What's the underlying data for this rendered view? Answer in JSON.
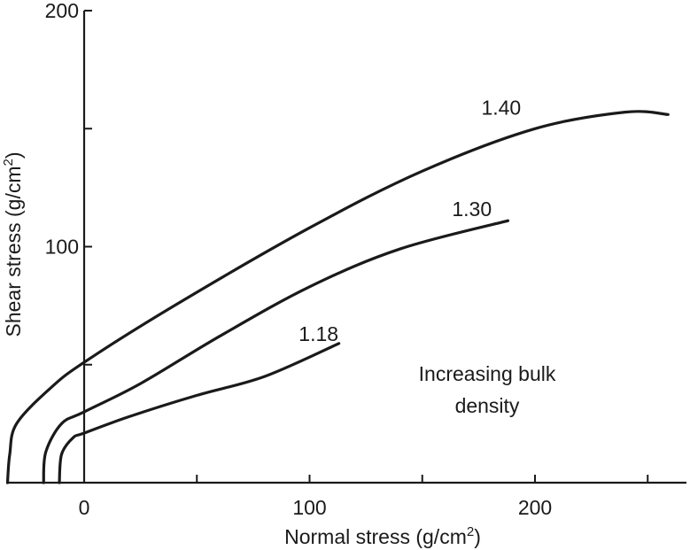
{
  "chart_data": {
    "type": "line",
    "title": "",
    "xlabel": "Normal stress (g/cm",
    "xlabel_sup": "2",
    "xlabel_suffix": ")",
    "ylabel": "Shear stress (g/cm",
    "ylabel_sup": "2",
    "ylabel_suffix": ")",
    "xlim": [
      -35,
      275
    ],
    "ylim": [
      0,
      200
    ],
    "x_ticks": [
      {
        "value": 0,
        "label": "0"
      },
      {
        "value": 50,
        "label": ""
      },
      {
        "value": 100,
        "label": "100"
      },
      {
        "value": 150,
        "label": ""
      },
      {
        "value": 200,
        "label": "200"
      },
      {
        "value": 250,
        "label": ""
      }
    ],
    "y_ticks": [
      {
        "value": 50,
        "label": ""
      },
      {
        "value": 100,
        "label": "100"
      },
      {
        "value": 150,
        "label": ""
      },
      {
        "value": 200,
        "label": "200"
      }
    ],
    "grid": false,
    "legend": "none",
    "annotation": [
      "Increasing bulk",
      "density"
    ],
    "series": [
      {
        "name": "1.18",
        "label_at": [
          104,
          60
        ],
        "points": [
          [
            -11,
            0
          ],
          [
            -10,
            12
          ],
          [
            -5,
            19
          ],
          [
            0,
            21
          ],
          [
            20,
            28
          ],
          [
            50,
            37
          ],
          [
            80,
            45
          ],
          [
            113,
            59
          ]
        ]
      },
      {
        "name": "1.30",
        "label_at": [
          172,
          113
        ],
        "points": [
          [
            -18,
            0
          ],
          [
            -17,
            13
          ],
          [
            -10,
            25
          ],
          [
            0,
            30
          ],
          [
            25,
            42
          ],
          [
            60,
            62
          ],
          [
            100,
            83
          ],
          [
            140,
            99
          ],
          [
            188,
            111
          ]
        ]
      },
      {
        "name": "1.40",
        "label_at": [
          185,
          156
        ],
        "points": [
          [
            -34,
            0
          ],
          [
            -33,
            12
          ],
          [
            -30,
            25
          ],
          [
            -15,
            40
          ],
          [
            0,
            51
          ],
          [
            40,
            75
          ],
          [
            100,
            108
          ],
          [
            150,
            132
          ],
          [
            200,
            150
          ],
          [
            240,
            157
          ],
          [
            259,
            156
          ]
        ]
      }
    ]
  }
}
